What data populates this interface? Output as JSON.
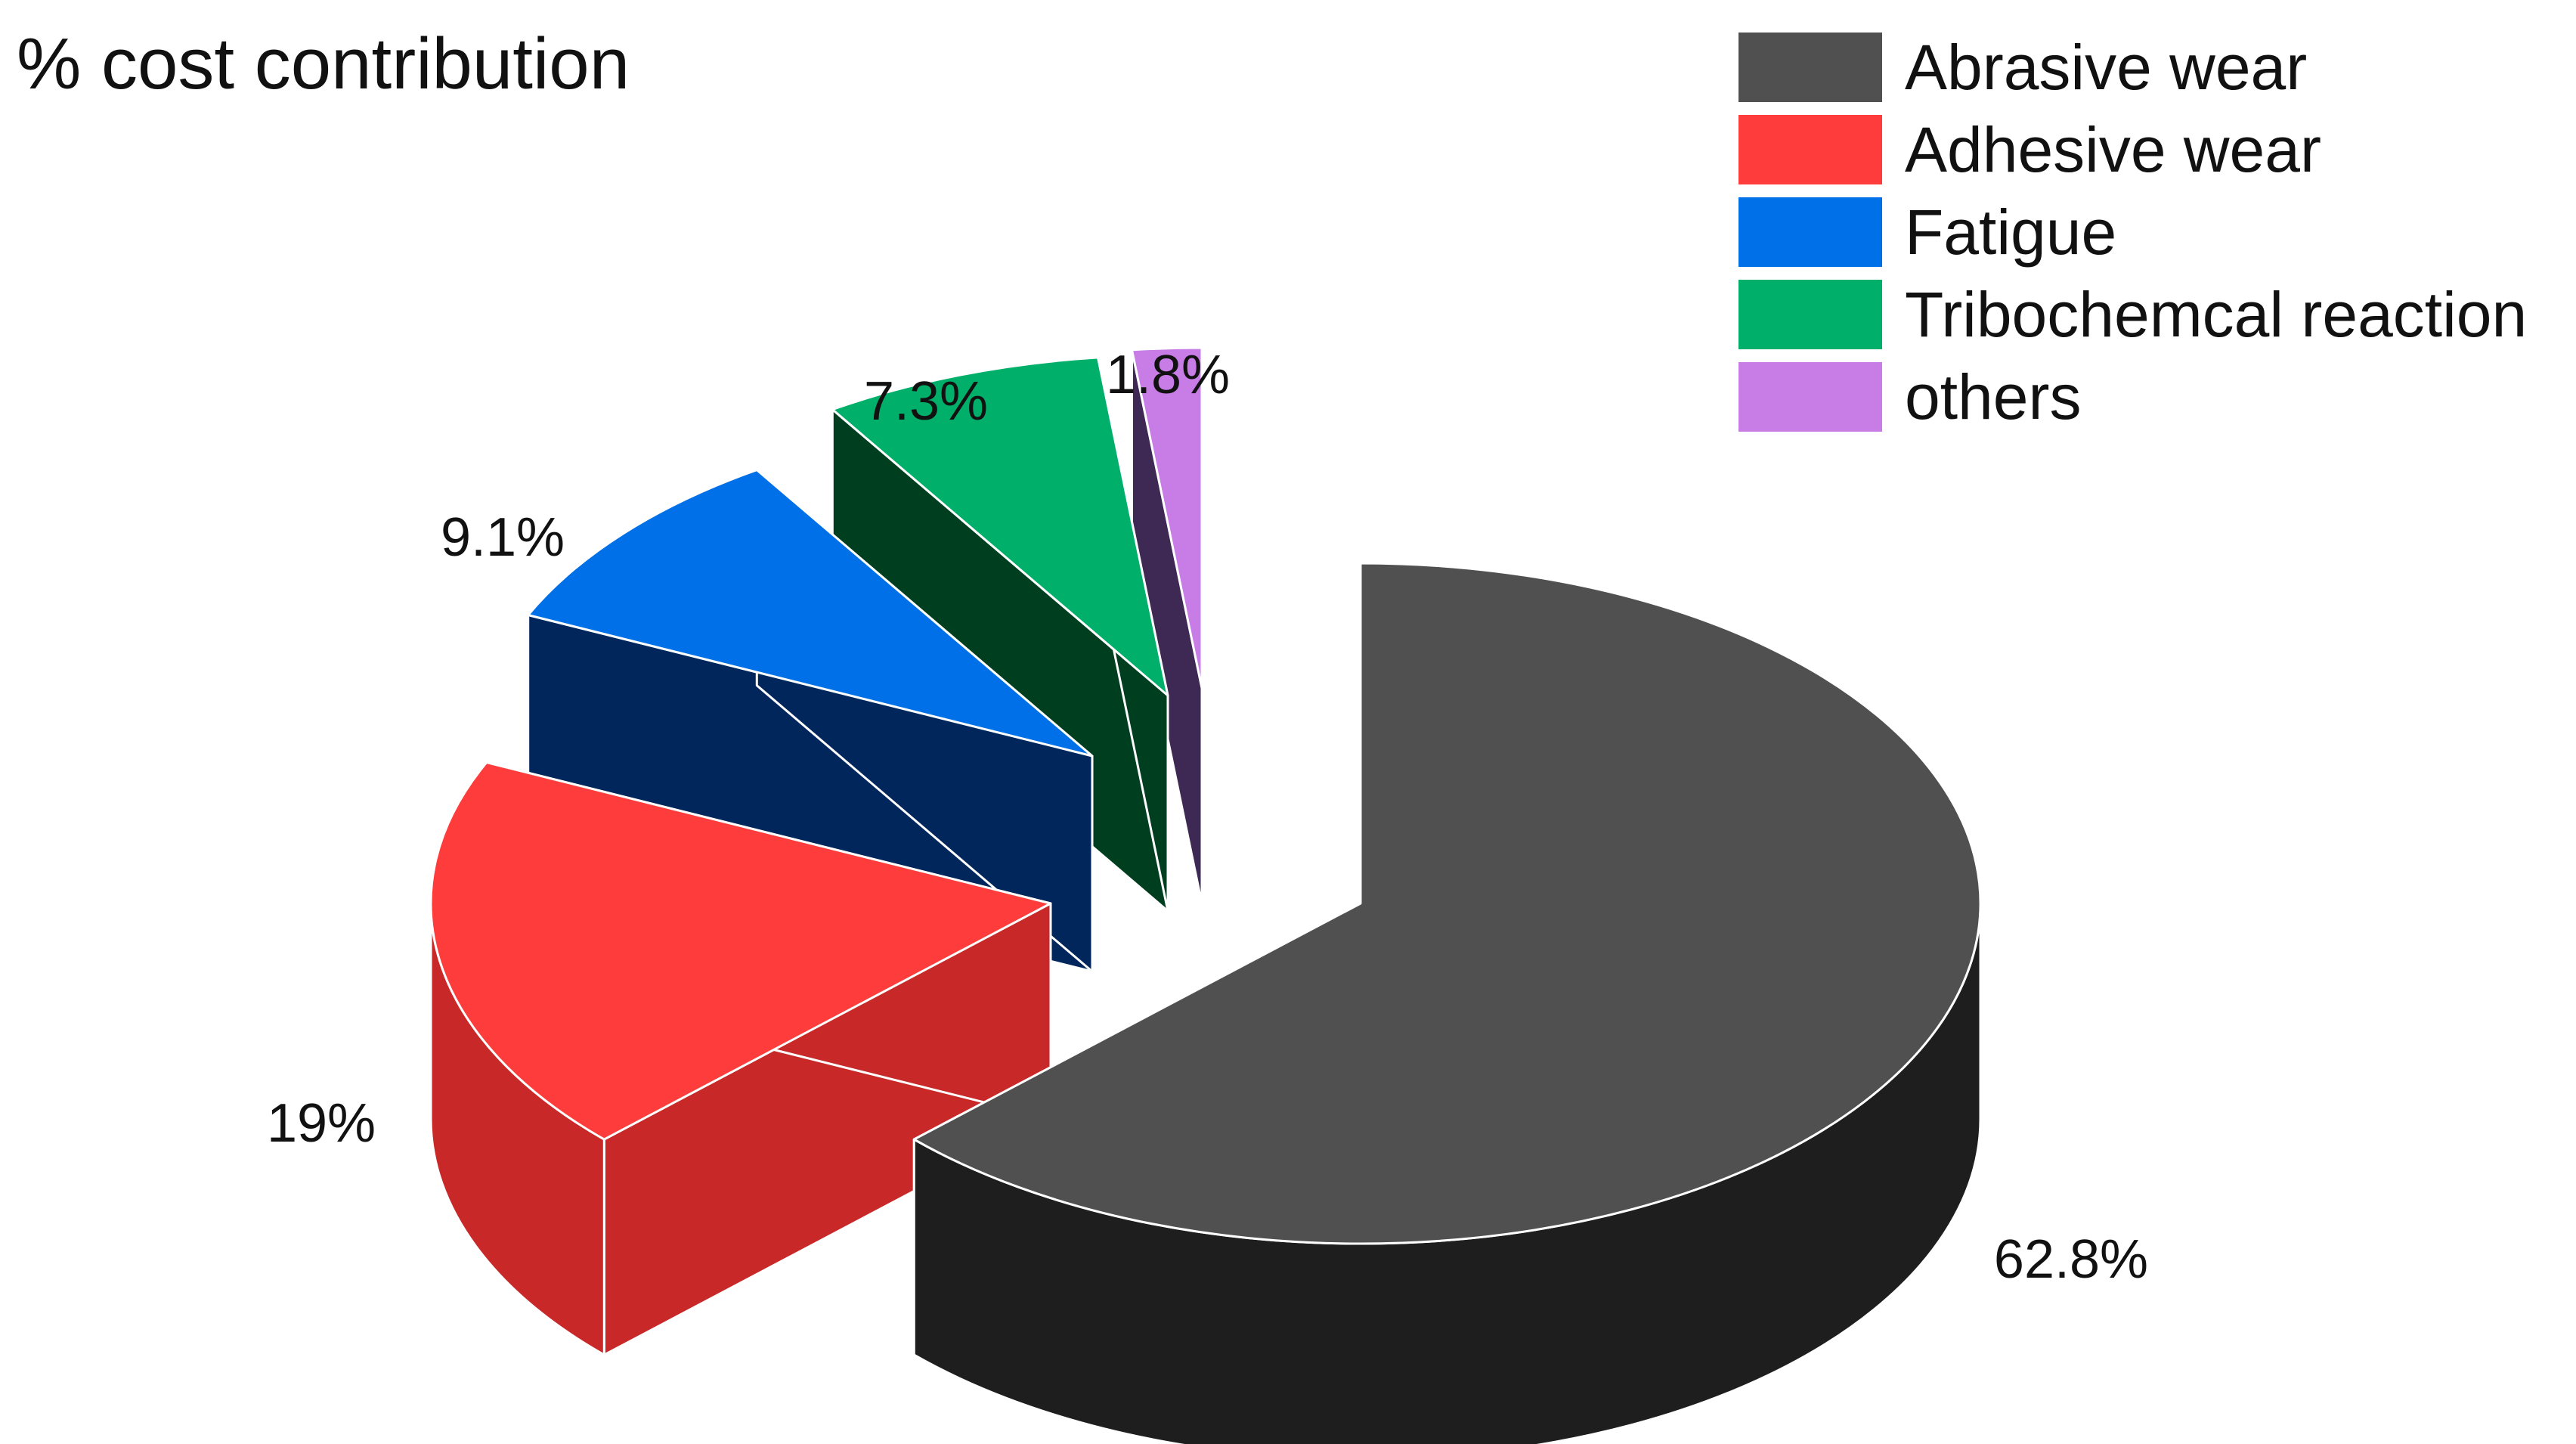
{
  "chart_data": {
    "type": "pie",
    "title": "% cost contribution",
    "categories": [
      "Abrasive wear",
      "Adhesive wear",
      "Fatigue",
      "Tribochemcal reaction",
      "others"
    ],
    "values": [
      62.8,
      19,
      9.1,
      7.3,
      1.8
    ],
    "data_labels": [
      "62.8%",
      "19%",
      "9.1%",
      "7.3%",
      "1.8%"
    ],
    "colors": [
      "#505050",
      "#ff3c3c",
      "#0070e8",
      "#00b06a",
      "#c77ce6"
    ],
    "side_colors": [
      "#1e1e1e",
      "#c82828",
      "#00265c",
      "#003e20",
      "#3e2854"
    ],
    "exploded": true,
    "three_d": true,
    "legend": "top-right"
  }
}
